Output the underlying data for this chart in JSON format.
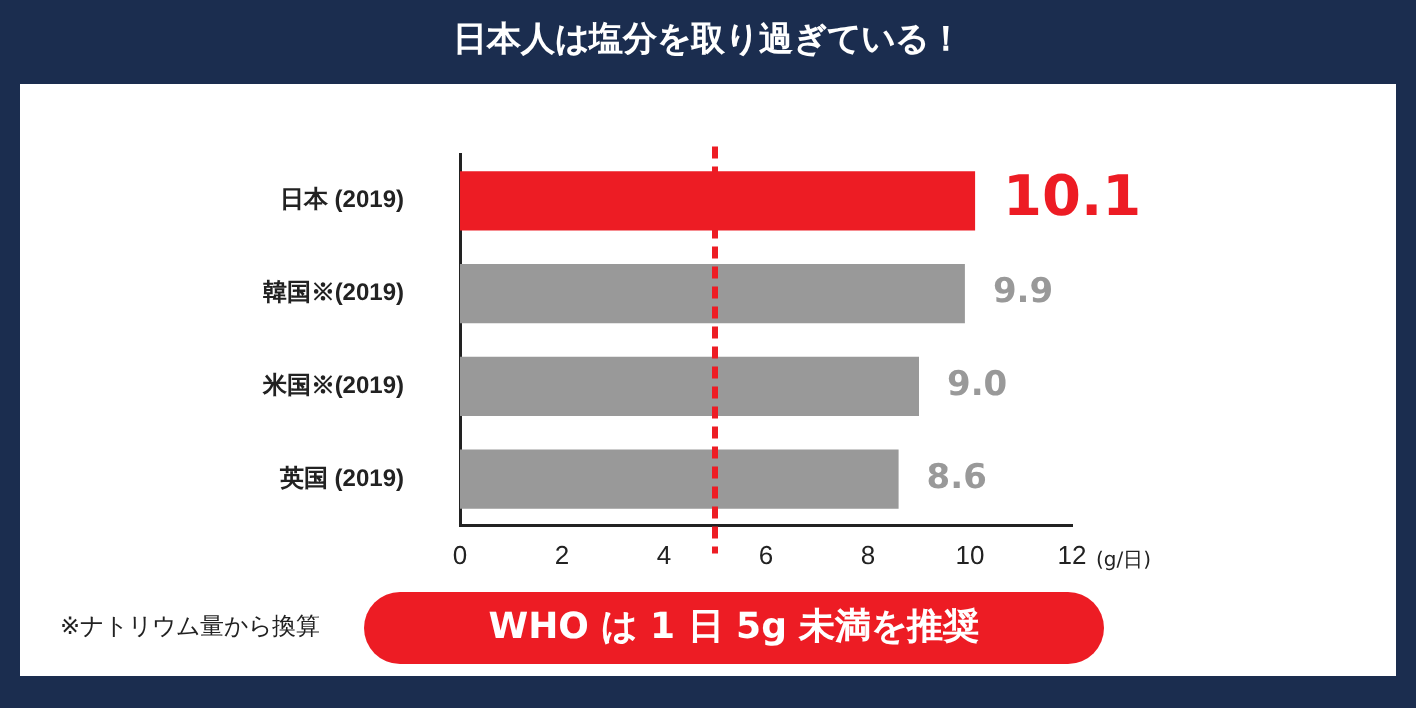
{
  "chart_data": {
    "type": "bar",
    "orientation": "horizontal",
    "title": "日本人は塩分を取り過ぎている！",
    "xlabel": "(g/日)",
    "categories": [
      "日本 (2019)",
      "韓国※(2019)",
      "米国※(2019)",
      "英国 (2019)"
    ],
    "values": [
      10.1,
      9.9,
      9.0,
      8.6
    ],
    "colors": [
      "#ed1c24",
      "#999999",
      "#999999",
      "#999999"
    ],
    "xlim": [
      0,
      12
    ],
    "xticks": [
      0,
      2,
      4,
      6,
      8,
      10,
      12
    ],
    "ref_lines": [
      {
        "axis": "x",
        "value": 5,
        "color": "#ed1c24",
        "line_style": "dashed"
      }
    ],
    "value_labels": [
      "10.1",
      "9.9",
      "9.0",
      "8.6"
    ],
    "grid": false,
    "legend": false,
    "annotations": [
      "※ナトリウム量から換算",
      "WHO は 1 日 5g 未満を推奨"
    ]
  }
}
